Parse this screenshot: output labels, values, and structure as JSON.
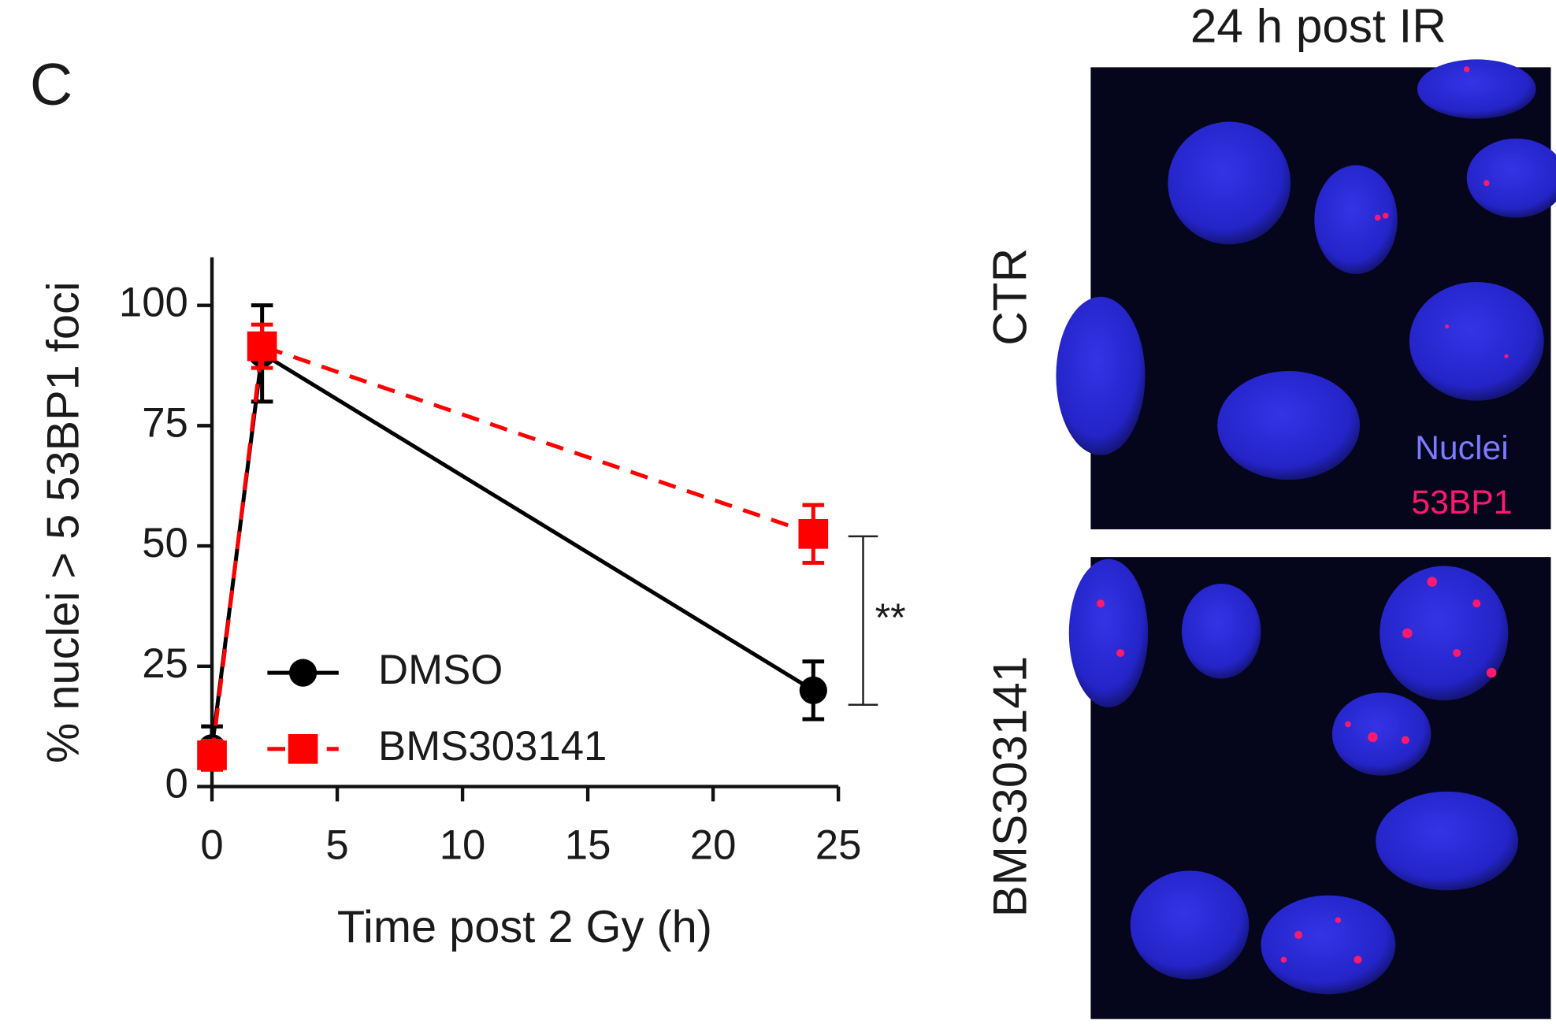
{
  "panel_label": "C",
  "chart_data": {
    "type": "line",
    "x_label": "Time post 2 Gy  (h)",
    "y_label": "% nuclei > 5 53BP1 foci",
    "xlim": [
      0,
      25
    ],
    "xticks": [
      0,
      5,
      10,
      15,
      20,
      25
    ],
    "ylim": [
      0,
      110
    ],
    "yticks": [
      0,
      25,
      50,
      75,
      100
    ],
    "legend": "lower left",
    "series": [
      {
        "name": "DMSO",
        "color": "#000000",
        "marker": "circle",
        "dash": false,
        "x": [
          0,
          2,
          24
        ],
        "values": [
          8,
          90,
          20
        ],
        "errors": [
          4.5,
          10,
          6
        ]
      },
      {
        "name": "BMS303141",
        "color": "#ff0000",
        "marker": "square",
        "dash": true,
        "x": [
          0,
          2,
          24
        ],
        "values": [
          6.5,
          91.5,
          52.5
        ],
        "errors": [
          3,
          4.5,
          6
        ]
      }
    ],
    "significance": {
      "label": "**",
      "y": [
        17,
        52
      ]
    }
  },
  "images": {
    "title": "24 h post IR",
    "rows": [
      "CTR",
      "BMS303141"
    ],
    "channels": [
      {
        "name": "Nuclei",
        "color": "#7b7bff"
      },
      {
        "name": "53BP1",
        "color": "#ff1a6e"
      }
    ]
  }
}
